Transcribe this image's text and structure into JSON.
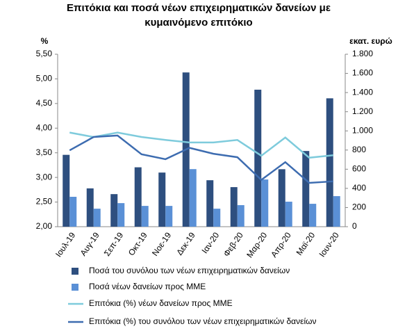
{
  "chart_data": {
    "type": "bar_line",
    "title": [
      "Επιτόκια και ποσά νέων επιχειρηματικών δανείων με",
      "κυμαινόμενο επιτόκιο"
    ],
    "ylabel": "%",
    "y2label": "εκατ. ευρώ",
    "categories": [
      "Ιουλ-19",
      "Αυγ-19",
      "Σεπ-19",
      "Οκτ-19",
      "Νοε-19",
      "Δεκ-19",
      "Ιαν-20",
      "Φεβ-20",
      "Μαρ-20",
      "Απρ-20",
      "Μαϊ-20",
      "Ιουν-20"
    ],
    "series": [
      {
        "name": "Ποσά του συνόλου των νέων επιχειρηματικών δανείων",
        "kind": "bar",
        "axis": "y2",
        "color": "#2e4f7f",
        "values": [
          750,
          400,
          340,
          620,
          565,
          1610,
          485,
          413,
          1430,
          600,
          790,
          1340
        ]
      },
      {
        "name": "Ποσά νέων δανείων προς ΜΜΕ",
        "kind": "bar",
        "axis": "y2",
        "color": "#5a90d6",
        "values": [
          312,
          188,
          246,
          217,
          217,
          601,
          188,
          225,
          493,
          261,
          239,
          319
        ]
      },
      {
        "name": "Επιτόκια (%) νέων δανείων προς ΜΜΕ",
        "kind": "line",
        "axis": "y",
        "color": "#7ecbdc",
        "values": [
          3.91,
          3.82,
          3.91,
          3.82,
          3.76,
          3.71,
          3.71,
          3.76,
          3.44,
          3.81,
          3.4,
          3.45
        ]
      },
      {
        "name": "Επιτόκια (%) του συνόλου των νέων επιχειρηματικών δανείων",
        "kind": "line",
        "axis": "y",
        "color": "#3d6cb0",
        "values": [
          3.55,
          3.82,
          3.85,
          3.47,
          3.37,
          3.6,
          3.48,
          3.41,
          2.95,
          3.31,
          2.89,
          2.92
        ]
      }
    ],
    "ylim": [
      2,
      5.5
    ],
    "yticks": [
      {
        "value": 2,
        "label": "2,00"
      },
      {
        "value": 2.5,
        "label": "2,50"
      },
      {
        "value": 3,
        "label": "3,00"
      },
      {
        "value": 3.5,
        "label": "3,50"
      },
      {
        "value": 4,
        "label": "4,00"
      },
      {
        "value": 4.5,
        "label": "4,50"
      },
      {
        "value": 5,
        "label": "5,00"
      },
      {
        "value": 5.5,
        "label": "5,50"
      }
    ],
    "y2lim": [
      0,
      1800
    ],
    "y2ticks": [
      0,
      200,
      400,
      600,
      800,
      {
        "value": 1000,
        "label": "1.000"
      },
      {
        "value": 1200,
        "label": "1.200"
      },
      {
        "value": 1400,
        "label": "1.400"
      },
      {
        "value": 1600,
        "label": "1.600"
      },
      {
        "value": 1800,
        "label": "1.800"
      }
    ]
  }
}
